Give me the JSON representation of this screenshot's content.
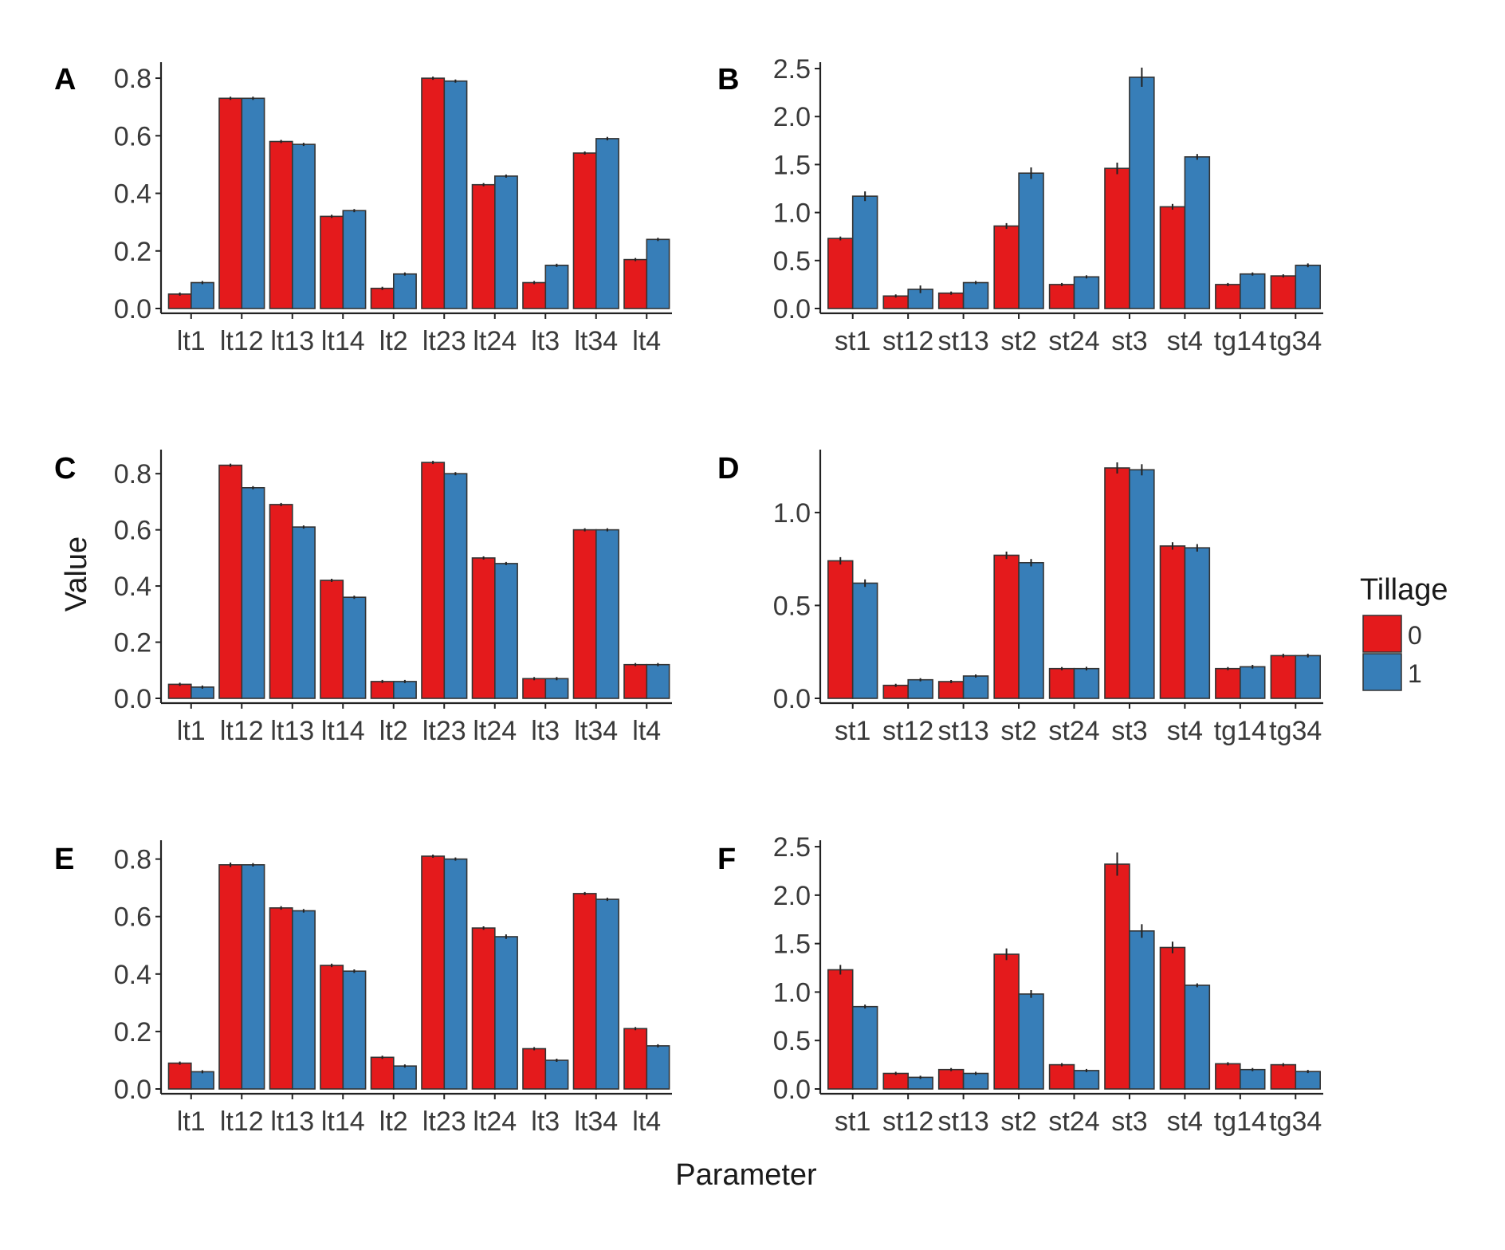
{
  "figure": {
    "y_axis_title": "Value",
    "x_axis_title": "Parameter",
    "legend": {
      "title": "Tillage",
      "placement": "right",
      "entries": [
        {
          "label": "0",
          "color": "#e41a1c"
        },
        {
          "label": "1",
          "color": "#377eb8"
        }
      ]
    }
  },
  "chart_data": [
    {
      "panel": "A",
      "type": "bar",
      "categories": [
        "lt1",
        "lt12",
        "lt13",
        "lt14",
        "lt2",
        "lt23",
        "lt24",
        "lt3",
        "lt34",
        "lt4"
      ],
      "ylim": [
        0,
        0.85
      ],
      "yticks": [
        0.0,
        0.2,
        0.4,
        0.6,
        0.8
      ],
      "ytick_labels": [
        "0.0",
        "0.2",
        "0.4",
        "0.6",
        "0.8"
      ],
      "series": [
        {
          "name": "0",
          "values": [
            0.05,
            0.73,
            0.58,
            0.32,
            0.07,
            0.8,
            0.43,
            0.09,
            0.54,
            0.17
          ],
          "errors": [
            0.003,
            0.005,
            0.005,
            0.004,
            0.003,
            0.004,
            0.004,
            0.003,
            0.005,
            0.003
          ]
        },
        {
          "name": "1",
          "values": [
            0.09,
            0.73,
            0.57,
            0.34,
            0.12,
            0.79,
            0.46,
            0.15,
            0.59,
            0.24
          ],
          "errors": [
            0.003,
            0.005,
            0.005,
            0.005,
            0.004,
            0.004,
            0.004,
            0.004,
            0.006,
            0.004
          ]
        }
      ]
    },
    {
      "panel": "B",
      "type": "bar",
      "categories": [
        "st1",
        "st12",
        "st13",
        "st2",
        "st24",
        "st3",
        "st4",
        "tg14",
        "tg34"
      ],
      "ylim": [
        0,
        2.55
      ],
      "yticks": [
        0.0,
        0.5,
        1.0,
        1.5,
        2.0,
        2.5
      ],
      "ytick_labels": [
        "0.0",
        "0.5",
        "1.0",
        "1.5",
        "2.0",
        "2.5"
      ],
      "series": [
        {
          "name": "0",
          "values": [
            0.73,
            0.13,
            0.16,
            0.86,
            0.25,
            1.46,
            1.06,
            0.25,
            0.34
          ],
          "errors": [
            0.02,
            0.01,
            0.01,
            0.03,
            0.01,
            0.06,
            0.03,
            0.01,
            0.01
          ]
        },
        {
          "name": "1",
          "values": [
            1.17,
            0.2,
            0.27,
            1.41,
            0.33,
            2.41,
            1.58,
            0.36,
            0.45
          ],
          "errors": [
            0.05,
            0.04,
            0.01,
            0.06,
            0.01,
            0.1,
            0.03,
            0.01,
            0.02
          ]
        }
      ]
    },
    {
      "panel": "C",
      "type": "bar",
      "categories": [
        "lt1",
        "lt12",
        "lt13",
        "lt14",
        "lt2",
        "lt23",
        "lt24",
        "lt3",
        "lt34",
        "lt4"
      ],
      "ylim": [
        0,
        0.88
      ],
      "yticks": [
        0.0,
        0.2,
        0.4,
        0.6,
        0.8
      ],
      "ytick_labels": [
        "0.0",
        "0.2",
        "0.4",
        "0.6",
        "0.8"
      ],
      "series": [
        {
          "name": "0",
          "values": [
            0.05,
            0.83,
            0.69,
            0.42,
            0.06,
            0.84,
            0.5,
            0.07,
            0.6,
            0.12
          ],
          "errors": [
            0.002,
            0.003,
            0.004,
            0.004,
            0.002,
            0.003,
            0.004,
            0.002,
            0.004,
            0.003
          ]
        },
        {
          "name": "1",
          "values": [
            0.04,
            0.75,
            0.61,
            0.36,
            0.06,
            0.8,
            0.48,
            0.07,
            0.6,
            0.12
          ],
          "errors": [
            0.002,
            0.003,
            0.004,
            0.004,
            0.002,
            0.003,
            0.004,
            0.002,
            0.004,
            0.003
          ]
        }
      ]
    },
    {
      "panel": "D",
      "type": "bar",
      "categories": [
        "st1",
        "st12",
        "st13",
        "st2",
        "st24",
        "st3",
        "st4",
        "tg14",
        "tg34"
      ],
      "ylim": [
        0,
        1.33
      ],
      "yticks": [
        0.0,
        0.5,
        1.0
      ],
      "ytick_labels": [
        "0.0",
        "0.5",
        "1.0"
      ],
      "series": [
        {
          "name": "0",
          "values": [
            0.74,
            0.07,
            0.09,
            0.77,
            0.16,
            1.24,
            0.82,
            0.16,
            0.23
          ],
          "errors": [
            0.02,
            0.005,
            0.005,
            0.02,
            0.005,
            0.03,
            0.02,
            0.005,
            0.01
          ]
        },
        {
          "name": "1",
          "values": [
            0.62,
            0.1,
            0.12,
            0.73,
            0.16,
            1.23,
            0.81,
            0.17,
            0.23
          ],
          "errors": [
            0.02,
            0.005,
            0.005,
            0.02,
            0.01,
            0.03,
            0.02,
            0.01,
            0.01
          ]
        }
      ]
    },
    {
      "panel": "E",
      "type": "bar",
      "categories": [
        "lt1",
        "lt12",
        "lt13",
        "lt14",
        "lt2",
        "lt23",
        "lt24",
        "lt3",
        "lt34",
        "lt4"
      ],
      "ylim": [
        0,
        0.86
      ],
      "yticks": [
        0.0,
        0.2,
        0.4,
        0.6,
        0.8
      ],
      "ytick_labels": [
        "0.0",
        "0.2",
        "0.4",
        "0.6",
        "0.8"
      ],
      "series": [
        {
          "name": "0",
          "values": [
            0.09,
            0.78,
            0.63,
            0.43,
            0.11,
            0.81,
            0.56,
            0.14,
            0.68,
            0.21
          ],
          "errors": [
            0.003,
            0.008,
            0.006,
            0.006,
            0.003,
            0.004,
            0.006,
            0.003,
            0.004,
            0.005
          ]
        },
        {
          "name": "1",
          "values": [
            0.06,
            0.78,
            0.62,
            0.41,
            0.08,
            0.8,
            0.53,
            0.1,
            0.66,
            0.15
          ],
          "errors": [
            0.003,
            0.006,
            0.006,
            0.006,
            0.003,
            0.004,
            0.008,
            0.003,
            0.004,
            0.004
          ]
        }
      ]
    },
    {
      "panel": "F",
      "type": "bar",
      "categories": [
        "st1",
        "st12",
        "st13",
        "st2",
        "st24",
        "st3",
        "st4",
        "tg14",
        "tg34"
      ],
      "ylim": [
        0,
        2.55
      ],
      "yticks": [
        0.0,
        0.5,
        1.0,
        1.5,
        2.0,
        2.5
      ],
      "ytick_labels": [
        "0.0",
        "0.5",
        "1.0",
        "1.5",
        "2.0",
        "2.5"
      ],
      "series": [
        {
          "name": "0",
          "values": [
            1.23,
            0.16,
            0.2,
            1.39,
            0.25,
            2.32,
            1.46,
            0.26,
            0.25
          ],
          "errors": [
            0.05,
            0.01,
            0.01,
            0.06,
            0.01,
            0.12,
            0.06,
            0.01,
            0.01
          ]
        },
        {
          "name": "1",
          "values": [
            0.85,
            0.12,
            0.16,
            0.98,
            0.19,
            1.63,
            1.07,
            0.2,
            0.18
          ],
          "errors": [
            0.02,
            0.01,
            0.01,
            0.04,
            0.01,
            0.07,
            0.02,
            0.01,
            0.01
          ]
        }
      ]
    }
  ]
}
